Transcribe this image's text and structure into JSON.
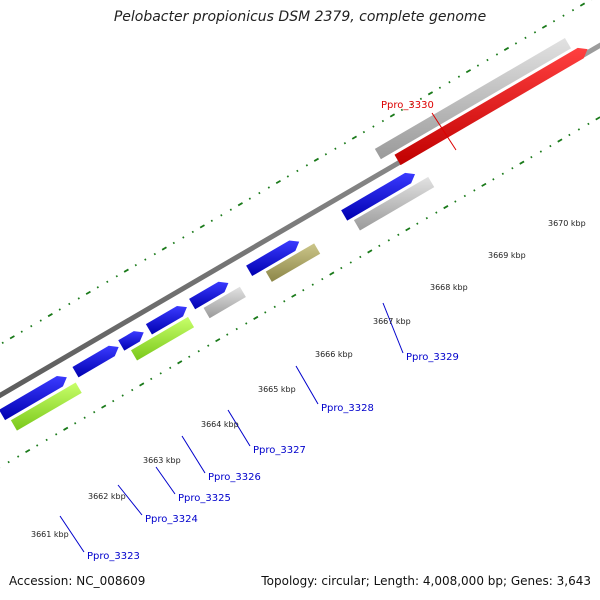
{
  "title": "Pelobacter propionicus DSM 2379, complete genome",
  "footer": {
    "accession": "Accession: NC_008609",
    "summary": "Topology: circular; Length: 4,008,000 bp; Genes: 3,643"
  },
  "colors": {
    "backbone": "#808080",
    "forward_cds": "#0000e6",
    "reverse_cds": "#c8c8c8",
    "rna": "#ff1a1a",
    "feature_olive": "#b5ae6a",
    "feature_lime": "#a8f53a",
    "ticks": "#1a7a1a",
    "gene_label": "#0000cc",
    "highlight_label": "#dd0000"
  },
  "kbp_ticks": [
    {
      "label": "3661 kbp"
    },
    {
      "label": "3662 kbp"
    },
    {
      "label": "3663 kbp"
    },
    {
      "label": "3664 kbp"
    },
    {
      "label": "3665 kbp"
    },
    {
      "label": "3666 kbp"
    },
    {
      "label": "3667 kbp"
    },
    {
      "label": "3668 kbp"
    },
    {
      "label": "3669 kbp"
    },
    {
      "label": "3670 kbp"
    }
  ],
  "gene_labels": [
    {
      "name": "Ppro_3323"
    },
    {
      "name": "Ppro_3324"
    },
    {
      "name": "Ppro_3325"
    },
    {
      "name": "Ppro_3326"
    },
    {
      "name": "Ppro_3327"
    },
    {
      "name": "Ppro_3328"
    },
    {
      "name": "Ppro_3329"
    },
    {
      "name": "Ppro_3330",
      "highlight": true
    }
  ]
}
